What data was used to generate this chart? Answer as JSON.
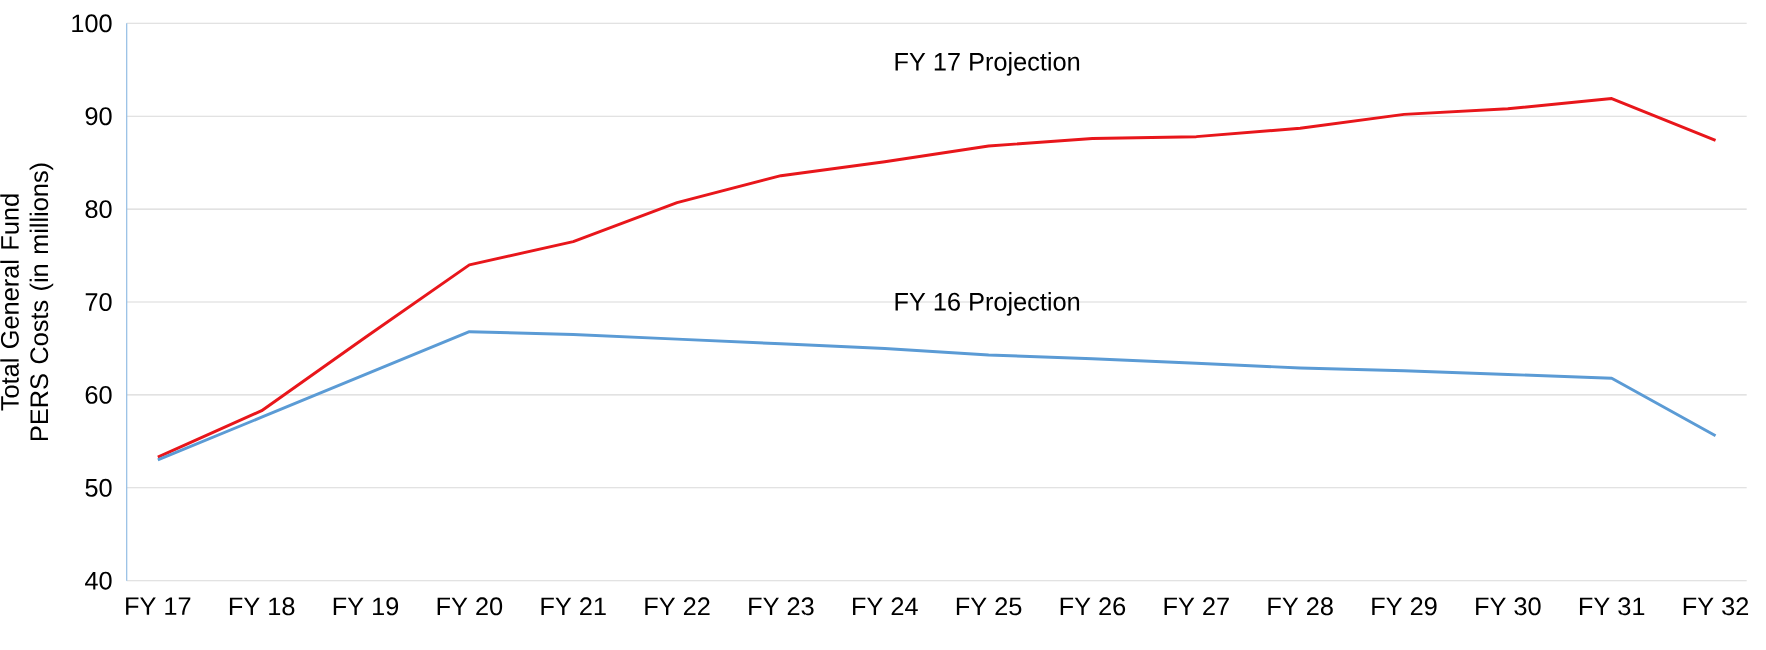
{
  "chart_data": {
    "type": "line",
    "ylabel": "Total General Fund PERS Costs (in millions)",
    "categories": [
      "FY 17",
      "FY 18",
      "FY 19",
      "FY 20",
      "FY 21",
      "FY 22",
      "FY 23",
      "FY 24",
      "FY 25",
      "FY 26",
      "FY 27",
      "FY 28",
      "FY 29",
      "FY 30",
      "FY 31",
      "FY 32"
    ],
    "series": [
      {
        "color": "#e8161b",
        "values": [
          53.3,
          58.3,
          66.2,
          74.0,
          76.5,
          80.7,
          83.6,
          85.1,
          86.8,
          87.6,
          87.8,
          88.7,
          90.2,
          90.8,
          91.9,
          87.4
        ]
      },
      {
        "color": "#5b9bd5",
        "values": [
          53.0,
          57.6,
          62.2,
          66.8,
          66.5,
          66.0,
          65.5,
          65.0,
          64.3,
          63.9,
          63.4,
          62.9,
          62.6,
          62.2,
          61.8,
          55.6
        ]
      }
    ],
    "annotations": [
      "FY 17 Projection",
      "FY 16 Projection"
    ],
    "ylim": [
      40,
      100
    ],
    "yticks": [
      40,
      50,
      60,
      70,
      80,
      90,
      100
    ],
    "grid": "y",
    "marker": "none",
    "line_style": "solid"
  }
}
